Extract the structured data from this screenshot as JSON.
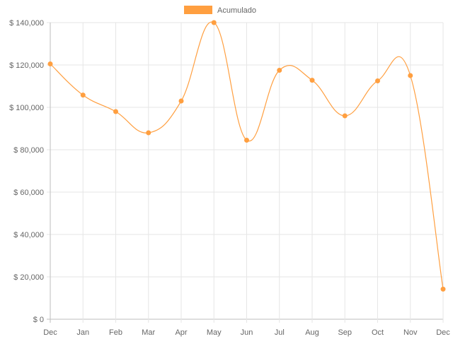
{
  "chart_data": {
    "type": "line",
    "categories": [
      "Dec",
      "Jan",
      "Feb",
      "Mar",
      "Apr",
      "May",
      "Jun",
      "Jul",
      "Aug",
      "Sep",
      "Oct",
      "Nov",
      "Dec"
    ],
    "series": [
      {
        "name": "Acumulado",
        "color": "#ff9f40",
        "values": [
          120500,
          105800,
          98000,
          88000,
          103000,
          140000,
          84500,
          117500,
          112800,
          96000,
          112500,
          115000,
          14200
        ]
      }
    ],
    "yticks": [
      "$ 0",
      "$ 20,000",
      "$ 40,000",
      "$ 60,000",
      "$ 80,000",
      "$ 100,000",
      "$ 120,000",
      "$ 140,000"
    ],
    "ylim": [
      0,
      140000
    ],
    "grid": true,
    "legend_position": "top-center"
  }
}
